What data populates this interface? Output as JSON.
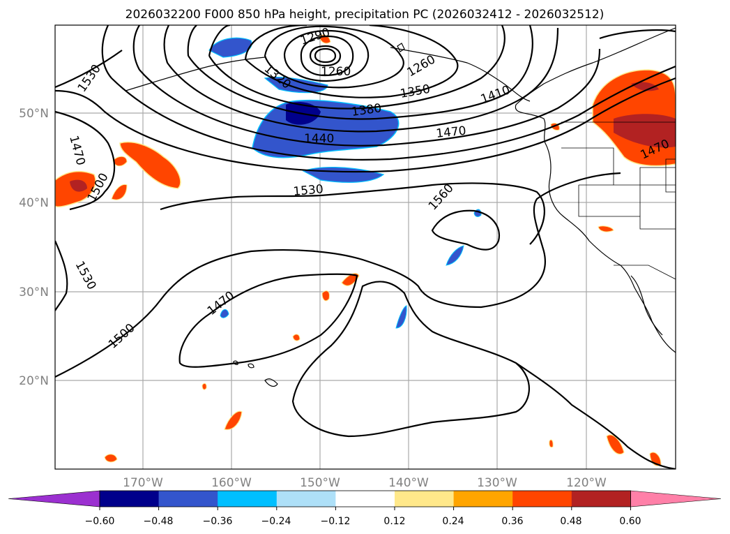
{
  "title": "2026032200 F000 850 hPa height, precipitation PC (2026032412 - 2026032512)",
  "map": {
    "lon_ticks": [
      "170°W",
      "160°W",
      "150°W",
      "140°W",
      "130°W",
      "120°W"
    ],
    "lat_ticks": [
      "50°N",
      "40°N",
      "30°N",
      "20°N"
    ],
    "contour_labels": [
      "1290",
      "1260",
      "1260",
      "1320",
      "1350",
      "1380",
      "1410",
      "1440",
      "1470",
      "1470",
      "1470",
      "1500",
      "1500",
      "1530",
      "1530",
      "1530",
      "1560",
      "1470"
    ]
  },
  "colorbar": {
    "tick_labels": [
      "−0.60",
      "−0.48",
      "−0.36",
      "−0.24",
      "−0.12",
      "0.12",
      "0.24",
      "0.36",
      "0.48",
      "0.60"
    ],
    "colors": [
      "#9b30d0",
      "#00008b",
      "#3355cc",
      "#00bfff",
      "#aee0f8",
      "#ffffff",
      "#ffe88a",
      "#ffa500",
      "#ff4500",
      "#b22222",
      "#ff80a8"
    ]
  }
}
